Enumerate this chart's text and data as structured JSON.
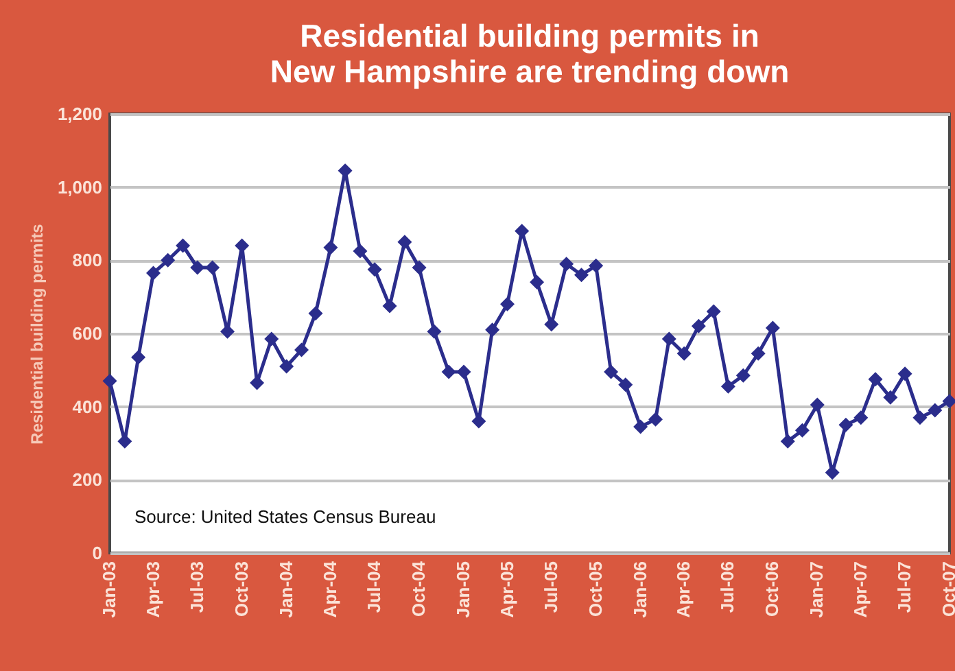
{
  "chart_data": {
    "type": "line",
    "title": "Residential building permits in\nNew Hampshire are trending down",
    "ylabel": "Residential building permits",
    "x": [
      "2003-01",
      "2003-02",
      "2003-03",
      "2003-04",
      "2003-05",
      "2003-06",
      "2003-07",
      "2003-08",
      "2003-09",
      "2003-10",
      "2003-11",
      "2003-12",
      "2004-01",
      "2004-02",
      "2004-03",
      "2004-04",
      "2004-05",
      "2004-06",
      "2004-07",
      "2004-08",
      "2004-09",
      "2004-10",
      "2004-11",
      "2004-12",
      "2005-01",
      "2005-02",
      "2005-03",
      "2005-04",
      "2005-05",
      "2005-06",
      "2005-07",
      "2005-08",
      "2005-09",
      "2005-10",
      "2005-11",
      "2005-12",
      "2006-01",
      "2006-02",
      "2006-03",
      "2006-04",
      "2006-05",
      "2006-06",
      "2006-07",
      "2006-08",
      "2006-09",
      "2006-10",
      "2006-11",
      "2006-12",
      "2007-01",
      "2007-02",
      "2007-03",
      "2007-04",
      "2007-05",
      "2007-06",
      "2007-07",
      "2007-08",
      "2007-09",
      "2007-10"
    ],
    "series": [
      {
        "color": "#2b2d8c",
        "values": [
          470,
          305,
          535,
          765,
          800,
          840,
          780,
          780,
          605,
          840,
          465,
          585,
          510,
          555,
          655,
          835,
          1045,
          825,
          775,
          675,
          850,
          780,
          605,
          495,
          495,
          360,
          610,
          680,
          880,
          740,
          625,
          790,
          760,
          785,
          495,
          460,
          345,
          365,
          585,
          545,
          620,
          660,
          455,
          485,
          545,
          615,
          305,
          335,
          405,
          220,
          350,
          370,
          475,
          425,
          490,
          370,
          390,
          415
        ]
      }
    ],
    "xlim": [
      "2003-01",
      "2007-10"
    ],
    "xticks": [
      {
        "value": "2003-01",
        "label": "Jan-03"
      },
      {
        "value": "2003-04",
        "label": "Apr-03"
      },
      {
        "value": "2003-07",
        "label": "Jul-03"
      },
      {
        "value": "2003-10",
        "label": "Oct-03"
      },
      {
        "value": "2004-01",
        "label": "Jan-04"
      },
      {
        "value": "2004-04",
        "label": "Apr-04"
      },
      {
        "value": "2004-07",
        "label": "Jul-04"
      },
      {
        "value": "2004-10",
        "label": "Oct-04"
      },
      {
        "value": "2005-01",
        "label": "Jan-05"
      },
      {
        "value": "2005-04",
        "label": "Apr-05"
      },
      {
        "value": "2005-07",
        "label": "Jul-05"
      },
      {
        "value": "2005-10",
        "label": "Oct-05"
      },
      {
        "value": "2006-01",
        "label": "Jan-06"
      },
      {
        "value": "2006-04",
        "label": "Apr-06"
      },
      {
        "value": "2006-07",
        "label": "Jul-06"
      },
      {
        "value": "2006-10",
        "label": "Oct-06"
      },
      {
        "value": "2007-01",
        "label": "Jan-07"
      },
      {
        "value": "2007-04",
        "label": "Apr-07"
      },
      {
        "value": "2007-07",
        "label": "Jul-07"
      },
      {
        "value": "2007-10",
        "label": "Oct-07"
      }
    ],
    "ylim": [
      0,
      1200
    ],
    "yticks": [
      0,
      200,
      400,
      600,
      800,
      {
        "value": 1000,
        "label": "1,000"
      },
      {
        "value": 1200,
        "label": "1,200"
      }
    ],
    "grid": "y",
    "marker": "diamond",
    "line_style": "solid",
    "annotations": [
      "Source: United States Census Bureau"
    ]
  }
}
